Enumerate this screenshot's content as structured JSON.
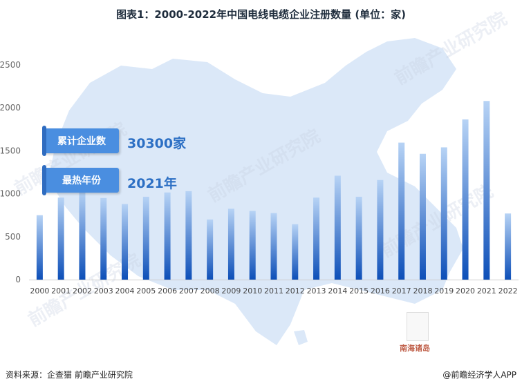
{
  "title": "图表1：2000-2022年中国电线电缆企业注册数量 (单位：家)",
  "stats": {
    "total_label": "累计企业数",
    "total_value": "30300家",
    "peak_label": "最热年份",
    "peak_value": "2021年"
  },
  "map_label": "南海诸岛",
  "watermark": "前瞻产业研究院",
  "footer": {
    "source": "资料来源：企查猫 前瞻产业研究院",
    "brand": "@前瞻经济学人APP"
  },
  "colors": {
    "bar_top": "#b7d3f5",
    "bar_bottom": "#0d4fb8",
    "map": "#dbe8f8"
  },
  "chart_data": {
    "type": "bar",
    "title": "图表1：2000-2022年中国电线电缆企业注册数量 (单位：家)",
    "categories": [
      "2000",
      "2001",
      "2002",
      "2003",
      "2004",
      "2005",
      "2006",
      "2007",
      "2008",
      "2009",
      "2010",
      "2011",
      "2012",
      "2013",
      "2014",
      "2015",
      "2016",
      "2017",
      "2018",
      "2019",
      "2020",
      "2021",
      "2022"
    ],
    "values": [
      750,
      955,
      1040,
      950,
      880,
      965,
      1015,
      1030,
      700,
      825,
      800,
      775,
      645,
      955,
      1210,
      965,
      1160,
      1595,
      1465,
      1540,
      1865,
      2080,
      770
    ],
    "ylim": [
      0,
      2500
    ],
    "yticks": [
      0,
      500,
      1000,
      1500,
      2000,
      2500
    ],
    "grid": false
  }
}
